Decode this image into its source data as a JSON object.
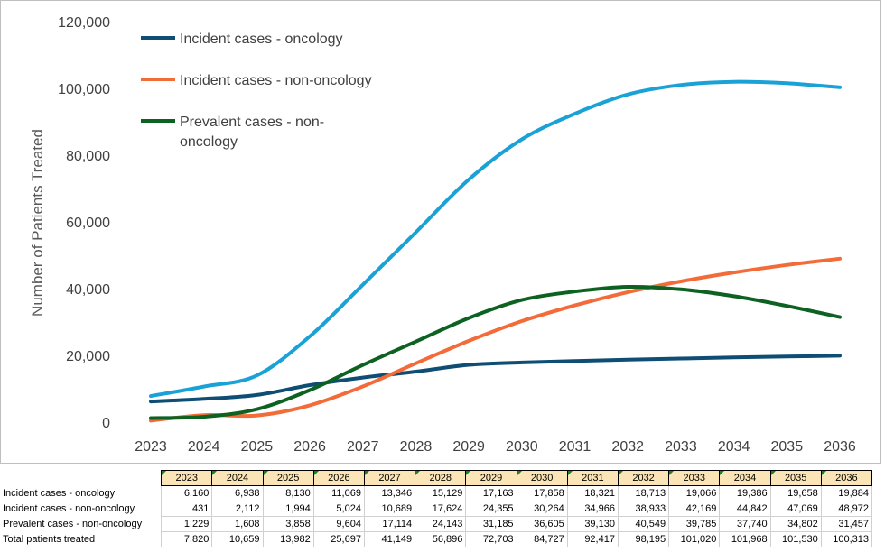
{
  "chart_data": {
    "type": "line",
    "title": "",
    "xlabel": "",
    "ylabel": "Number of Patients Treated",
    "ylim": [
      0,
      120000
    ],
    "yticks": [
      "0",
      "20,000",
      "40,000",
      "60,000",
      "80,000",
      "100,000",
      "120,000"
    ],
    "categories": [
      "2023",
      "2024",
      "2025",
      "2026",
      "2027",
      "2028",
      "2029",
      "2030",
      "2031",
      "2032",
      "2033",
      "2034",
      "2035",
      "2036"
    ],
    "grid": false,
    "legend_position": "top-left",
    "series": [
      {
        "name": "Incident cases - oncology",
        "color": "#0e4d74",
        "values": [
          6160,
          6938,
          8130,
          11069,
          13346,
          15129,
          17163,
          17858,
          18321,
          18713,
          19066,
          19386,
          19658,
          19884
        ]
      },
      {
        "name": "Incident cases - non-oncology",
        "color": "#f26b38",
        "values": [
          431,
          2112,
          1994,
          5024,
          10689,
          17624,
          24355,
          30264,
          34966,
          38933,
          42169,
          44842,
          47069,
          48972
        ]
      },
      {
        "name": "Prevalent cases - non-oncology",
        "color": "#0d6121",
        "values": [
          1229,
          1608,
          3858,
          9604,
          17114,
          24143,
          31185,
          36605,
          39130,
          40549,
          39785,
          37740,
          34802,
          31457
        ]
      },
      {
        "name": "",
        "color": "#1aa2d6",
        "values": [
          7820,
          10659,
          13982,
          25697,
          41149,
          56896,
          72703,
          84727,
          92417,
          98195,
          101020,
          101968,
          101530,
          100313
        ]
      }
    ],
    "legend_lines": [
      [
        "Incident cases - oncology"
      ],
      [
        "Incident cases - non-oncology"
      ],
      [
        "Prevalent cases - non-",
        "oncology"
      ]
    ]
  },
  "table": {
    "headers": [
      "2023",
      "2024",
      "2025",
      "2026",
      "2027",
      "2028",
      "2029",
      "2030",
      "2031",
      "2032",
      "2033",
      "2034",
      "2035",
      "2036"
    ],
    "rows": [
      {
        "label": "Incident cases - oncology",
        "cells": [
          "6,160",
          "6,938",
          "8,130",
          "11,069",
          "13,346",
          "15,129",
          "17,163",
          "17,858",
          "18,321",
          "18,713",
          "19,066",
          "19,386",
          "19,658",
          "19,884"
        ]
      },
      {
        "label": "Incident cases - non-oncology",
        "cells": [
          "431",
          "2,112",
          "1,994",
          "5,024",
          "10,689",
          "17,624",
          "24,355",
          "30,264",
          "34,966",
          "38,933",
          "42,169",
          "44,842",
          "47,069",
          "48,972"
        ]
      },
      {
        "label": "Prevalent cases - non-oncology",
        "cells": [
          "1,229",
          "1,608",
          "3,858",
          "9,604",
          "17,114",
          "24,143",
          "31,185",
          "36,605",
          "39,130",
          "40,549",
          "39,785",
          "37,740",
          "34,802",
          "31,457"
        ]
      },
      {
        "label": "Total patients treated",
        "cells": [
          "7,820",
          "10,659",
          "13,982",
          "25,697",
          "41,149",
          "56,896",
          "72,703",
          "84,727",
          "92,417",
          "98,195",
          "101,020",
          "101,968",
          "101,530",
          "100,313"
        ]
      }
    ]
  }
}
